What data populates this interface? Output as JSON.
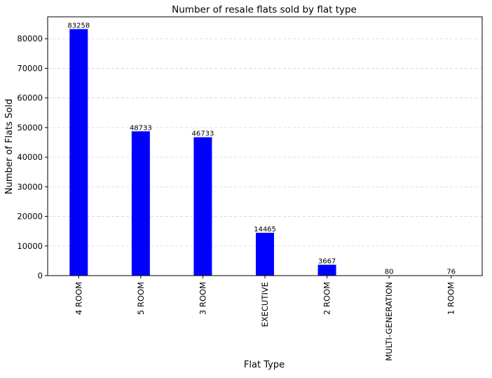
{
  "chart_data": {
    "type": "bar",
    "title": "Number of resale flats sold by flat type",
    "xlabel": "Flat Type",
    "ylabel": "Number of Flats Sold",
    "categories": [
      "4 ROOM",
      "5 ROOM",
      "3 ROOM",
      "EXECUTIVE",
      "2 ROOM",
      "MULTI-GENERATION",
      "1 ROOM"
    ],
    "values": [
      83258,
      48733,
      46733,
      14465,
      3667,
      80,
      76
    ],
    "value_labels": [
      "83258",
      "48733",
      "46733",
      "14465",
      "3667",
      "80",
      "76"
    ],
    "y_ticks": [
      0,
      10000,
      20000,
      30000,
      40000,
      50000,
      60000,
      70000,
      80000
    ],
    "y_tick_labels": [
      "0",
      "10000",
      "20000",
      "30000",
      "40000",
      "50000",
      "60000",
      "70000",
      "80000"
    ],
    "ylim": [
      0,
      87400
    ],
    "grid": "y-dashed",
    "bar_color": "#0000ff",
    "grid_color": "#d3d3d3"
  }
}
